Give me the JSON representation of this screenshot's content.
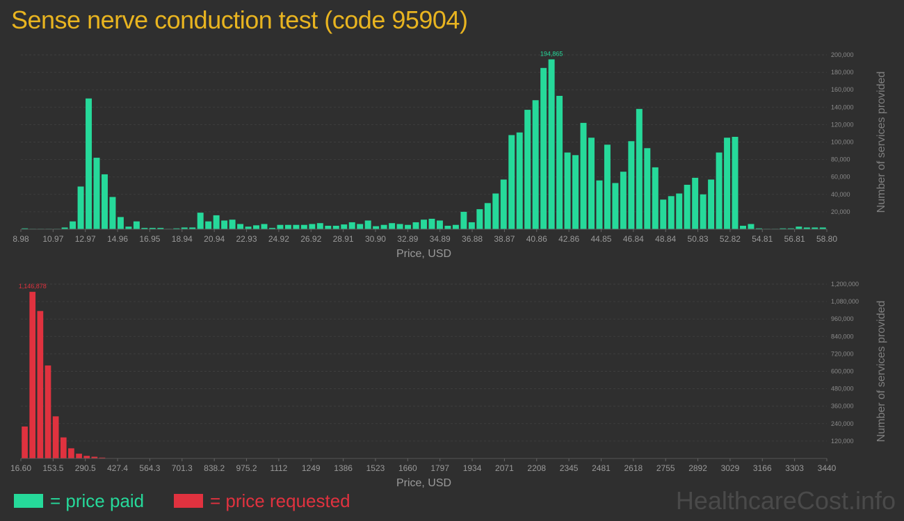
{
  "title": "Sense nerve conduction test (code 95904)",
  "colors": {
    "paid": "#26d99a",
    "requested": "#e0323f",
    "title": "#e8b420",
    "grid": "#3f3f3f"
  },
  "legend": {
    "paid_label": "= price paid",
    "requested_label": "= price requested"
  },
  "watermark": "HealthcareCost.info",
  "chart_data": [
    {
      "type": "bar",
      "xlabel": "Price, USD",
      "ylabel": "Number of services provided",
      "x_tick_labels": [
        "8.98",
        "10.97",
        "12.97",
        "14.96",
        "16.95",
        "18.94",
        "20.94",
        "22.93",
        "24.92",
        "26.92",
        "28.91",
        "30.90",
        "32.89",
        "34.89",
        "36.88",
        "38.87",
        "40.86",
        "42.86",
        "44.85",
        "46.84",
        "48.84",
        "50.83",
        "52.82",
        "54.81",
        "56.81",
        "58.80"
      ],
      "y_tick_labels": [
        "20,000",
        "40,000",
        "60,000",
        "80,000",
        "100,000",
        "120,000",
        "140,000",
        "160,000",
        "180,000",
        "200,000"
      ],
      "ylim": [
        0,
        200000
      ],
      "x_range": [
        8.98,
        58.8
      ],
      "peak_label": "194,865",
      "color": "#26d99a",
      "values": [
        1000,
        500,
        500,
        500,
        500,
        2000,
        9000,
        49000,
        150000,
        82000,
        63000,
        37000,
        14000,
        3000,
        9000,
        1500,
        1500,
        1500,
        500,
        1000,
        2000,
        2000,
        19000,
        9000,
        16000,
        10000,
        11000,
        6000,
        3000,
        4500,
        6000,
        1500,
        5000,
        5000,
        5000,
        5000,
        6000,
        7000,
        4000,
        4000,
        5500,
        8000,
        6000,
        10000,
        3500,
        5000,
        7000,
        6000,
        5000,
        8000,
        11000,
        12000,
        10000,
        4000,
        5000,
        20000,
        8000,
        23000,
        30000,
        41000,
        57000,
        108000,
        111000,
        137000,
        148000,
        185000,
        194865,
        153000,
        88000,
        85000,
        122000,
        105000,
        56000,
        97000,
        53000,
        66000,
        101000,
        138000,
        93000,
        71000,
        34000,
        38000,
        41000,
        51000,
        59000,
        40000,
        57000,
        88000,
        105000,
        106000,
        4000,
        6000,
        1000,
        500,
        500,
        1000,
        1000,
        3000,
        2000,
        2000,
        2000
      ]
    },
    {
      "type": "bar",
      "xlabel": "Price, USD",
      "ylabel": "Number of services provided",
      "x_tick_labels": [
        "16.60",
        "153.5",
        "290.5",
        "427.4",
        "564.3",
        "701.3",
        "838.2",
        "975.2",
        "1112",
        "1249",
        "1386",
        "1523",
        "1660",
        "1797",
        "1934",
        "2071",
        "2208",
        "2345",
        "2481",
        "2618",
        "2755",
        "2892",
        "3029",
        "3166",
        "3303",
        "3440"
      ],
      "y_tick_labels": [
        "120,000",
        "240,000",
        "360,000",
        "480,000",
        "600,000",
        "720,000",
        "840,000",
        "960,000",
        "1,080,000",
        "1,200,000"
      ],
      "ylim": [
        0,
        1200000
      ],
      "x_range": [
        16.6,
        3440
      ],
      "peak_label": "1,146,878",
      "color": "#e0323f",
      "values": [
        220000,
        1146878,
        1015000,
        640000,
        290000,
        145000,
        70000,
        33000,
        18000,
        12000,
        6000,
        2500,
        1500,
        1000,
        1000,
        1000,
        1000,
        500,
        500,
        500,
        1500,
        1500,
        500,
        500,
        500,
        500,
        500,
        500,
        500,
        500,
        500,
        500,
        500,
        500,
        1500,
        500,
        500,
        1500,
        500,
        500,
        500,
        500,
        500,
        500,
        500,
        500,
        500,
        500,
        500,
        500,
        500,
        500,
        500,
        500,
        500,
        500,
        500,
        1500,
        500,
        500,
        500,
        500,
        500,
        500,
        500,
        500,
        500,
        500,
        500,
        500,
        500,
        500,
        500,
        500,
        500,
        500,
        500,
        500,
        500,
        500,
        500,
        500,
        500,
        500,
        500,
        500,
        500,
        500,
        500,
        500,
        500,
        500,
        500,
        500,
        500,
        500,
        500,
        500,
        500,
        500,
        500,
        500,
        500,
        1000
      ]
    }
  ]
}
